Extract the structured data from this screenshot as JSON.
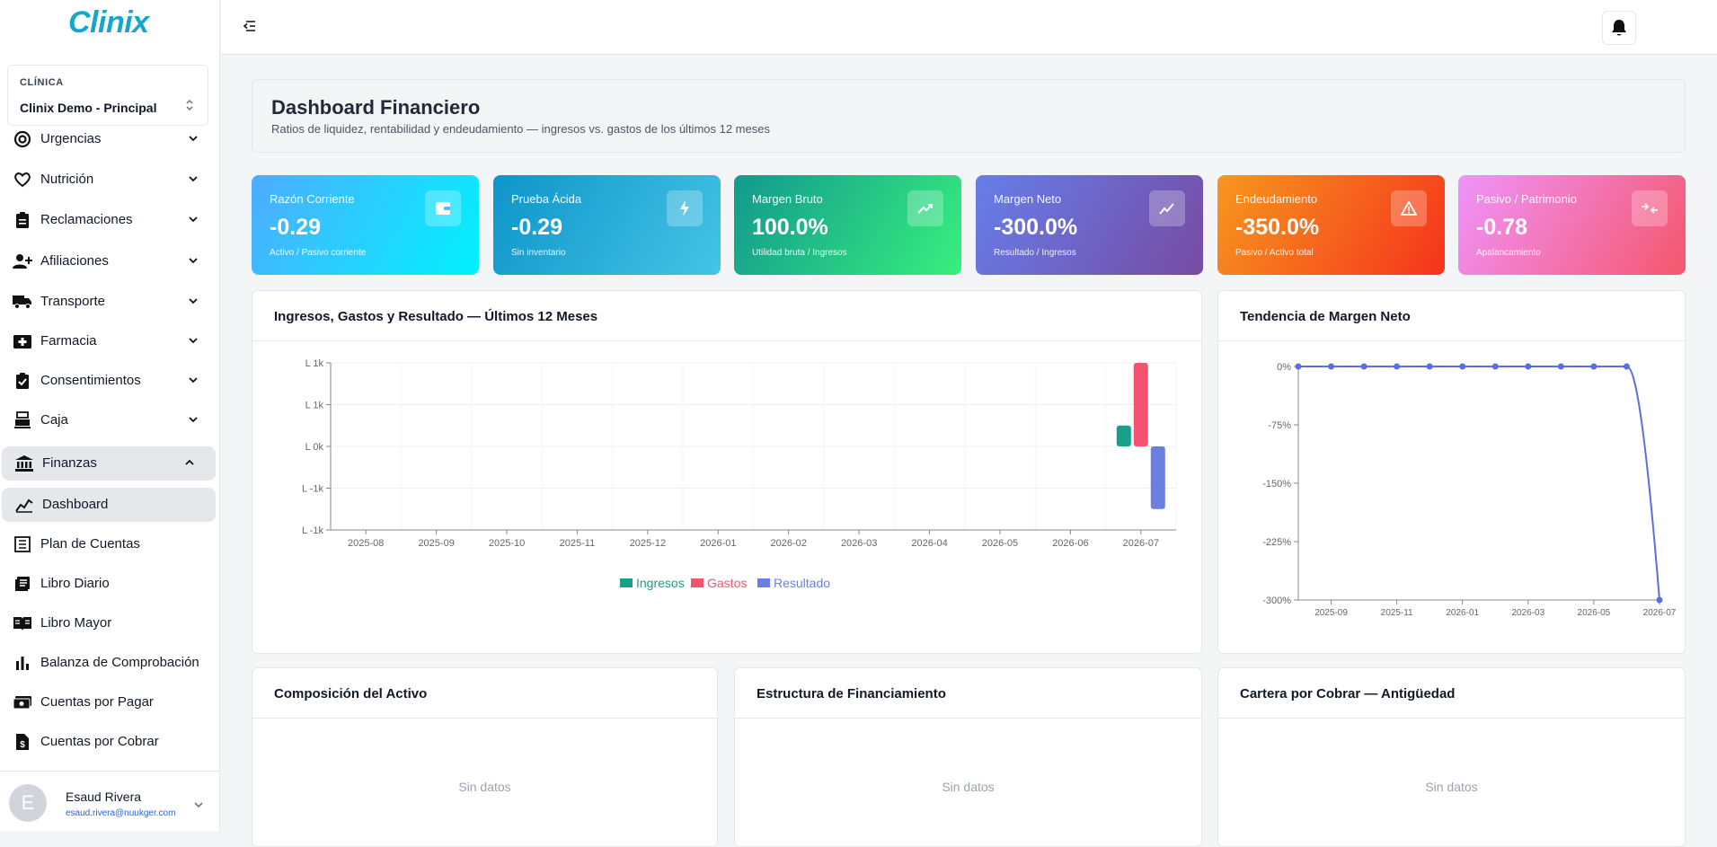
{
  "app": {
    "logo": "Clinix"
  },
  "clinic": {
    "caption": "CLÍNICA",
    "name": "Clinix Demo - Principal"
  },
  "nav": {
    "urgencias": "Urgencias",
    "nutricion": "Nutrición",
    "reclamaciones": "Reclamaciones",
    "afiliaciones": "Afiliaciones",
    "transporte": "Transporte",
    "farmacia": "Farmacia",
    "consentimientos": "Consentimientos",
    "caja": "Caja",
    "finanzas": "Finanzas",
    "dashboard": "Dashboard",
    "plan_cuentas": "Plan de Cuentas",
    "libro_diario": "Libro Diario",
    "libro_mayor": "Libro Mayor",
    "balanza": "Balanza de Comprobación",
    "cuentas_pagar": "Cuentas por Pagar",
    "cuentas_cobrar": "Cuentas por Cobrar"
  },
  "user": {
    "initial": "E",
    "name": "Esaud Rivera",
    "email": "esaud.rivera@nuukger.com"
  },
  "header": {
    "title": "Dashboard Financiero",
    "subtitle": "Ratios de liquidez, rentabilidad y endeudamiento — ingresos vs. gastos de los últimos 12 meses"
  },
  "kpis": [
    {
      "label": "Razón Corriente",
      "value": "-0.29",
      "sub": "Activo / Pasivo corriente",
      "icon": "wallet-icon"
    },
    {
      "label": "Prueba Ácida",
      "value": "-0.29",
      "sub": "Sin inventario",
      "icon": "bolt-icon"
    },
    {
      "label": "Margen Bruto",
      "value": "100.0%",
      "sub": "Utilidad bruta / Ingresos",
      "icon": "trending-up-icon"
    },
    {
      "label": "Margen Neto",
      "value": "-300.0%",
      "sub": "Resultado / Ingresos",
      "icon": "chart-line-icon"
    },
    {
      "label": "Endeudamiento",
      "value": "-350.0%",
      "sub": "Pasivo / Activo total",
      "icon": "warning-icon"
    },
    {
      "label": "Pasivo / Patrimonio",
      "value": "-0.78",
      "sub": "Apalancamiento",
      "icon": "compress-icon"
    }
  ],
  "colors": {
    "ingresos": "#16a08a",
    "gastos": "#f4536f",
    "resultado": "#6b7fe3",
    "margen_line": "#5b6fe0"
  },
  "chart_data": [
    {
      "type": "bar",
      "title": "Ingresos, Gastos y Resultado — Últimos 12 Meses",
      "categories": [
        "2025-08",
        "2025-09",
        "2025-10",
        "2025-11",
        "2025-12",
        "2026-01",
        "2026-02",
        "2026-03",
        "2026-04",
        "2026-05",
        "2026-06",
        "2026-07"
      ],
      "y_ticks": [
        "L 1k",
        "L 1k",
        "L 0k",
        "L -1k",
        "L -1k"
      ],
      "ylim": [
        -2000,
        2000
      ],
      "series": [
        {
          "name": "Ingresos",
          "values": [
            0,
            0,
            0,
            0,
            0,
            0,
            0,
            0,
            0,
            0,
            0,
            500
          ]
        },
        {
          "name": "Gastos",
          "values": [
            0,
            0,
            0,
            0,
            0,
            0,
            0,
            0,
            0,
            0,
            0,
            2000
          ]
        },
        {
          "name": "Resultado",
          "values": [
            0,
            0,
            0,
            0,
            0,
            0,
            0,
            0,
            0,
            0,
            0,
            -1500
          ]
        }
      ],
      "legend": "bottom",
      "grid": true
    },
    {
      "type": "line",
      "title": "Tendencia de Margen Neto",
      "x": [
        "2025-08",
        "2025-09",
        "2025-10",
        "2025-11",
        "2025-12",
        "2026-01",
        "2026-02",
        "2026-03",
        "2026-04",
        "2026-05",
        "2026-06",
        "2026-07"
      ],
      "x_ticks": [
        "2025-09",
        "2025-11",
        "2026-01",
        "2026-03",
        "2026-05",
        "2026-07"
      ],
      "y_ticks": [
        "0%",
        "-75%",
        "-150%",
        "-225%",
        "-300%"
      ],
      "ylim": [
        -300,
        0
      ],
      "series": [
        {
          "values": [
            0,
            0,
            0,
            0,
            0,
            0,
            0,
            0,
            0,
            0,
            0,
            -300
          ]
        }
      ],
      "grid": false
    }
  ],
  "panels": {
    "activo": {
      "title": "Composición del Activo",
      "empty": "Sin datos"
    },
    "financiamiento": {
      "title": "Estructura de Financiamiento",
      "empty": "Sin datos"
    },
    "cartera": {
      "title": "Cartera por Cobrar — Antigüedad",
      "empty": "Sin datos"
    }
  }
}
